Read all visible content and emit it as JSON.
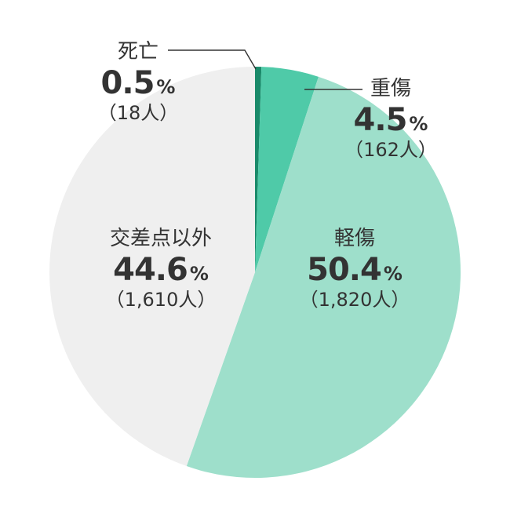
{
  "chart_data": {
    "type": "pie",
    "slices": [
      {
        "label": "死亡",
        "percent_text": "0.5",
        "unit": "%",
        "count_text": "（18人）",
        "value": 0.5,
        "color": "#1a8a6a"
      },
      {
        "label": "重傷",
        "percent_text": "4.5",
        "unit": "%",
        "count_text": "（162人）",
        "value": 4.5,
        "color": "#4fcaa8"
      },
      {
        "label": "軽傷",
        "percent_text": "50.4",
        "unit": "%",
        "count_text": "（1,820人）",
        "value": 50.4,
        "color": "#9edfcb"
      },
      {
        "label": "交差点以外",
        "percent_text": "44.6",
        "unit": "%",
        "count_text": "（1,610人）",
        "value": 44.6,
        "color": "#efefef"
      }
    ],
    "start": "12 o'clock",
    "direction": "clockwise",
    "legend": "none",
    "leader_line_color": "#333333"
  }
}
